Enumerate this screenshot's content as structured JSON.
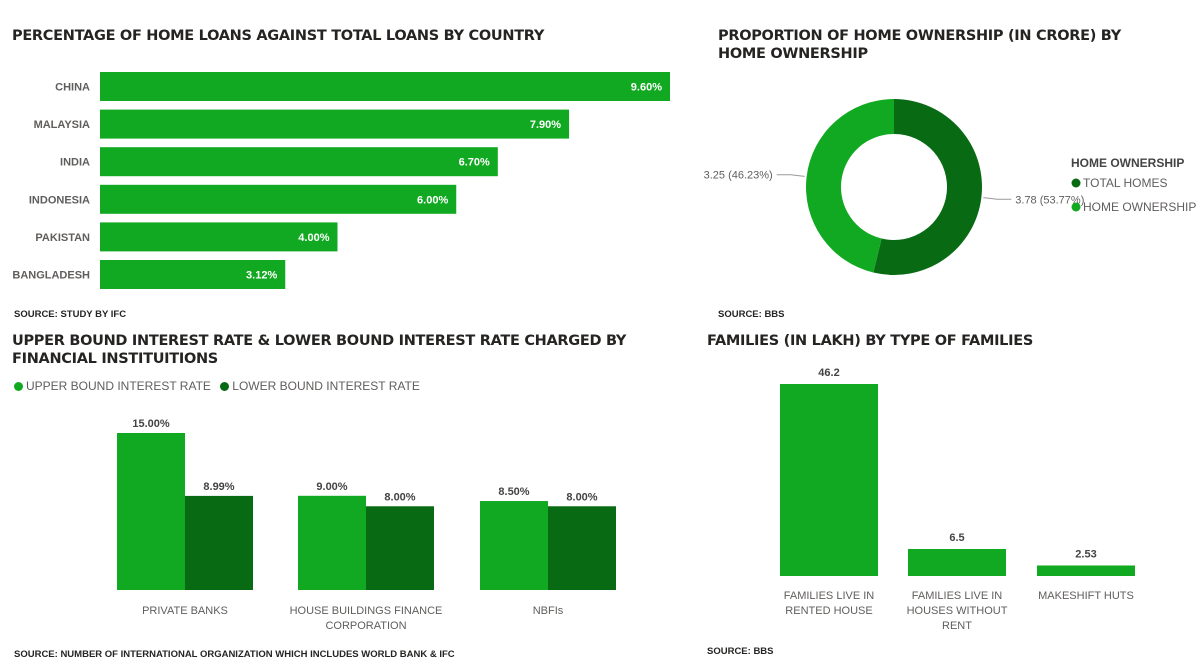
{
  "colors": {
    "light": "#11a921",
    "dark": "#086b14",
    "text": "#252423",
    "label": "#605e5c"
  },
  "chart_data": [
    {
      "type": "bar",
      "orientation": "horizontal",
      "title": "PERCENTAGE OF HOME LOANS AGAINST TOTAL LOANS BY COUNTRY",
      "source": "SOURCE: STUDY BY IFC",
      "categories": [
        "CHINA",
        "MALAYSIA",
        "INDIA",
        "INDONESIA",
        "PAKISTAN",
        "BANGLADESH"
      ],
      "values": [
        9.6,
        7.9,
        6.7,
        6.0,
        4.0,
        3.12
      ],
      "labels": [
        "9.60%",
        "7.90%",
        "6.70%",
        "6.00%",
        "4.00%",
        "3.12%"
      ],
      "xlim": [
        0,
        9.6
      ]
    },
    {
      "type": "pie",
      "donut": true,
      "title": "PROPORTION OF HOME OWNERSHIP (IN CRORE) BY HOME OWNERSHIP",
      "source": "SOURCE: BBS",
      "legend_title": "HOME OWNERSHIP",
      "legend_position": "right",
      "slices": [
        {
          "name": "TOTAL HOMES",
          "value": 3.78,
          "label": "3.78 (53.77%)",
          "color": "#086b14"
        },
        {
          "name": "HOME OWNERSHIP",
          "value": 3.25,
          "label": "3.25 (46.23%)",
          "color": "#11a921"
        }
      ]
    },
    {
      "type": "bar",
      "orientation": "vertical",
      "title": "UPPER BOUND INTEREST RATE & LOWER BOUND INTEREST RATE CHARGED BY FINANCIAL INSTITUITIONS",
      "source": "SOURCE: NUMBER OF INTERNATIONAL ORGANIZATION WHICH INCLUDES WORLD BANK & IFC",
      "legend_position": "top-left",
      "categories": [
        "PRIVATE BANKS",
        "HOUSE BUILDINGS FINANCE CORPORATION",
        "NBFIs"
      ],
      "series": [
        {
          "name": "UPPER BOUND INTEREST RATE",
          "values": [
            15.0,
            9.0,
            8.5
          ],
          "labels": [
            "15.00%",
            "9.00%",
            "8.50%"
          ],
          "color": "#11a921"
        },
        {
          "name": "LOWER BOUND INTEREST RATE",
          "values": [
            8.99,
            8.0,
            8.0
          ],
          "labels": [
            "8.99%",
            "8.00%",
            "8.00%"
          ],
          "color": "#086b14"
        }
      ],
      "ylim": [
        0,
        15
      ]
    },
    {
      "type": "bar",
      "orientation": "vertical",
      "title": "FAMILIES (IN LAKH) BY TYPE OF FAMILIES",
      "source": "SOURCE: BBS",
      "categories": [
        "FAMILIES LIVE IN RENTED HOUSE",
        "FAMILIES LIVE IN HOUSES WITHOUT RENT",
        "MAKESHIFT HUTS"
      ],
      "values": [
        46.2,
        6.5,
        2.53
      ],
      "labels": [
        "46.2",
        "6.5",
        "2.53"
      ],
      "ylim": [
        0,
        46.2
      ]
    }
  ]
}
